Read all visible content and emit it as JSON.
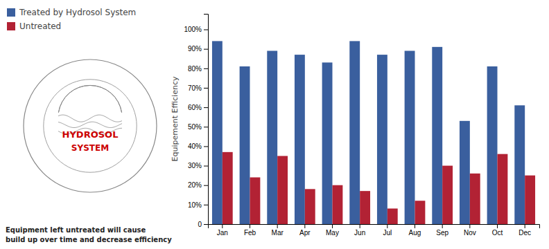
{
  "chart_data": {
    "type": "bar",
    "categories": [
      "Jan",
      "Feb",
      "Mar",
      "Apr",
      "May",
      "Jun",
      "Jul",
      "Aug",
      "Sep",
      "Nov",
      "Oct",
      "Dec"
    ],
    "series": [
      {
        "name": "Treated by Hydrosol System",
        "color": "#3a5f9e",
        "values": [
          94,
          81,
          89,
          87,
          83,
          94,
          87,
          89,
          91,
          53,
          81,
          61
        ]
      },
      {
        "name": "Untreated",
        "color": "#b22234",
        "values": [
          37,
          24,
          35,
          18,
          20,
          17,
          8,
          12,
          30,
          26,
          36,
          25
        ]
      }
    ],
    "y_label": "Equipement Efficiency",
    "ylim": [
      0,
      108
    ],
    "yticks": [
      0,
      {
        "value": 10,
        "label": "10%"
      },
      {
        "value": 20,
        "label": "20%"
      },
      {
        "value": 30,
        "label": "30%"
      },
      {
        "value": 40,
        "label": "40%"
      },
      {
        "value": 50,
        "label": "50%"
      },
      {
        "value": 60,
        "label": "60%"
      },
      {
        "value": 70,
        "label": "70%"
      },
      {
        "value": 80,
        "label": "80%"
      },
      {
        "value": 90,
        "label": "90%"
      },
      {
        "value": 100,
        "label": "100%"
      }
    ],
    "annotations": [
      "Equipment left untreated will cause\nbuild up over time and decrease efficiency",
      "HYDROSOL",
      "SYSTEM"
    ],
    "grid": false,
    "legend": "top-left"
  }
}
